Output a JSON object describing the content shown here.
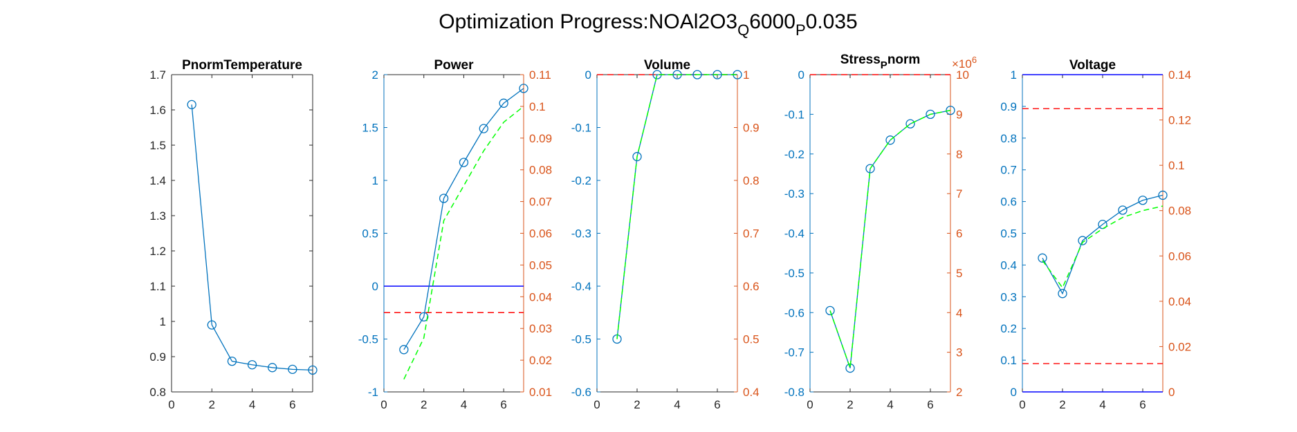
{
  "figure": {
    "title_main": "Optimization Progress:NOAl2O3",
    "title_sub1": "Q",
    "title_mid": "6000",
    "title_sub2": "P",
    "title_end": "0.035"
  },
  "colors": {
    "left_axis": "#0072BD",
    "right_axis": "#D95319",
    "series_main": "#0072BD",
    "series_dashed": "#00FF00",
    "limit_red": "#FF0000",
    "limit_blue": "#0000FF",
    "axis_black": "#262626"
  },
  "chart_data": [
    {
      "type": "line",
      "title": "PnormTemperature",
      "xlim": [
        0,
        7
      ],
      "xticks": [
        "0",
        "2",
        "4",
        "6"
      ],
      "ylim": [
        0.8,
        1.7
      ],
      "yticks": [
        "0.8",
        "0.9",
        "1",
        "1.1",
        "1.2",
        "1.3",
        "1.4",
        "1.5",
        "1.6",
        "1.7"
      ],
      "y_axis_color": "black",
      "series": [
        {
          "x": [
            1,
            2,
            3,
            4,
            5,
            6,
            7
          ],
          "values": [
            1.615,
            0.99,
            0.887,
            0.877,
            0.869,
            0.864,
            0.862
          ],
          "style": "line-circle"
        }
      ]
    },
    {
      "type": "line",
      "title": "Power",
      "xlim": [
        0,
        7
      ],
      "xticks": [
        "0",
        "2",
        "4",
        "6"
      ],
      "ylim": [
        -1,
        2
      ],
      "yticks": [
        "-1",
        "-0.5",
        "0",
        "0.5",
        "1",
        "1.5",
        "2"
      ],
      "ylim_right": [
        0.01,
        0.11
      ],
      "yticks_right": [
        "0.01",
        "0.02",
        "0.03",
        "0.04",
        "0.05",
        "0.06",
        "0.07",
        "0.08",
        "0.09",
        "0.1",
        "0.11"
      ],
      "series": [
        {
          "x": [
            1,
            2,
            3,
            4,
            5,
            6,
            7
          ],
          "values": [
            -0.6,
            -0.29,
            0.83,
            1.17,
            1.49,
            1.73,
            1.87
          ],
          "style": "line-circle"
        },
        {
          "x": [
            1,
            2,
            3,
            4,
            5,
            6,
            7
          ],
          "values_right": [
            0.014,
            0.027,
            0.064,
            0.075,
            0.086,
            0.095,
            0.1
          ],
          "style": "dashed"
        }
      ],
      "hlines": [
        {
          "axis": "left",
          "value": 0,
          "style": "solid-blue"
        },
        {
          "axis": "right",
          "value": 0.035,
          "style": "dashed-red"
        }
      ]
    },
    {
      "type": "line",
      "title": "Volume",
      "xlim": [
        0,
        7
      ],
      "xticks": [
        "0",
        "2",
        "4",
        "6"
      ],
      "ylim": [
        -0.6,
        0
      ],
      "yticks": [
        "-0.6",
        "-0.5",
        "-0.4",
        "-0.3",
        "-0.2",
        "-0.1",
        "0"
      ],
      "ylim_right": [
        0.4,
        1
      ],
      "yticks_right": [
        "0.4",
        "0.5",
        "0.6",
        "0.7",
        "0.8",
        "0.9",
        "1"
      ],
      "series": [
        {
          "x": [
            1,
            2,
            3,
            4,
            5,
            6,
            7
          ],
          "values": [
            -0.5,
            -0.155,
            0,
            0,
            0,
            0,
            0
          ],
          "style": "line-circle"
        },
        {
          "x": [
            1,
            2,
            3,
            4,
            5,
            6,
            7
          ],
          "values_right": [
            0.5,
            0.845,
            1,
            1,
            1,
            1,
            1
          ],
          "style": "dashed"
        }
      ],
      "hlines": [
        {
          "axis": "right",
          "value": 1,
          "style": "dashed-red"
        }
      ]
    },
    {
      "type": "line",
      "title_main": "Stress",
      "title_sub": "P",
      "title_end": "norm",
      "xlim": [
        0,
        7
      ],
      "xticks": [
        "0",
        "2",
        "4",
        "6"
      ],
      "ylim": [
        -0.8,
        0
      ],
      "yticks": [
        "-0.8",
        "-0.7",
        "-0.6",
        "-0.5",
        "-0.4",
        "-0.3",
        "-0.2",
        "-0.1",
        "0"
      ],
      "ylim_right": [
        2,
        10
      ],
      "yticks_right": [
        "2",
        "3",
        "4",
        "5",
        "6",
        "7",
        "8",
        "9",
        "10"
      ],
      "right_exponent_base": "×10",
      "right_exponent_power": "6",
      "series": [
        {
          "x": [
            1,
            2,
            3,
            4,
            5,
            6,
            7
          ],
          "values": [
            -0.595,
            -0.74,
            -0.237,
            -0.165,
            -0.124,
            -0.1,
            -0.09
          ],
          "style": "line-circle"
        },
        {
          "x": [
            1,
            2,
            3,
            4,
            5,
            6,
            7
          ],
          "values_right": [
            4.05,
            2.6,
            7.63,
            8.35,
            8.76,
            9.0,
            9.1
          ],
          "style": "dashed"
        }
      ],
      "hlines": [
        {
          "axis": "right",
          "value": 10,
          "style": "dashed-red"
        }
      ]
    },
    {
      "type": "line",
      "title": "Voltage",
      "xlim": [
        0,
        7
      ],
      "xticks": [
        "0",
        "2",
        "4",
        "6"
      ],
      "ylim": [
        0,
        1
      ],
      "yticks": [
        "0",
        "0.1",
        "0.2",
        "0.3",
        "0.4",
        "0.5",
        "0.6",
        "0.7",
        "0.8",
        "0.9",
        "1"
      ],
      "ylim_right": [
        0,
        0.14
      ],
      "yticks_right": [
        "0",
        "0.02",
        "0.04",
        "0.06",
        "0.08",
        "0.1",
        "0.12",
        "0.14"
      ],
      "series": [
        {
          "x": [
            1,
            2,
            3,
            4,
            5,
            6,
            7
          ],
          "values": [
            0.422,
            0.31,
            0.477,
            0.528,
            0.573,
            0.604,
            0.62
          ],
          "style": "line-circle"
        },
        {
          "x": [
            1,
            2,
            3,
            4,
            5,
            6,
            7
          ],
          "values_right": [
            0.058,
            0.046,
            0.066,
            0.072,
            0.077,
            0.08,
            0.082
          ],
          "style": "dashed"
        }
      ],
      "hlines": [
        {
          "axis": "left",
          "value": 1,
          "style": "solid-blue"
        },
        {
          "axis": "left",
          "value": 0,
          "style": "solid-blue"
        },
        {
          "axis": "right",
          "value": 0.125,
          "style": "dashed-red"
        },
        {
          "axis": "right",
          "value": 0.0125,
          "style": "dashed-red"
        }
      ]
    }
  ]
}
